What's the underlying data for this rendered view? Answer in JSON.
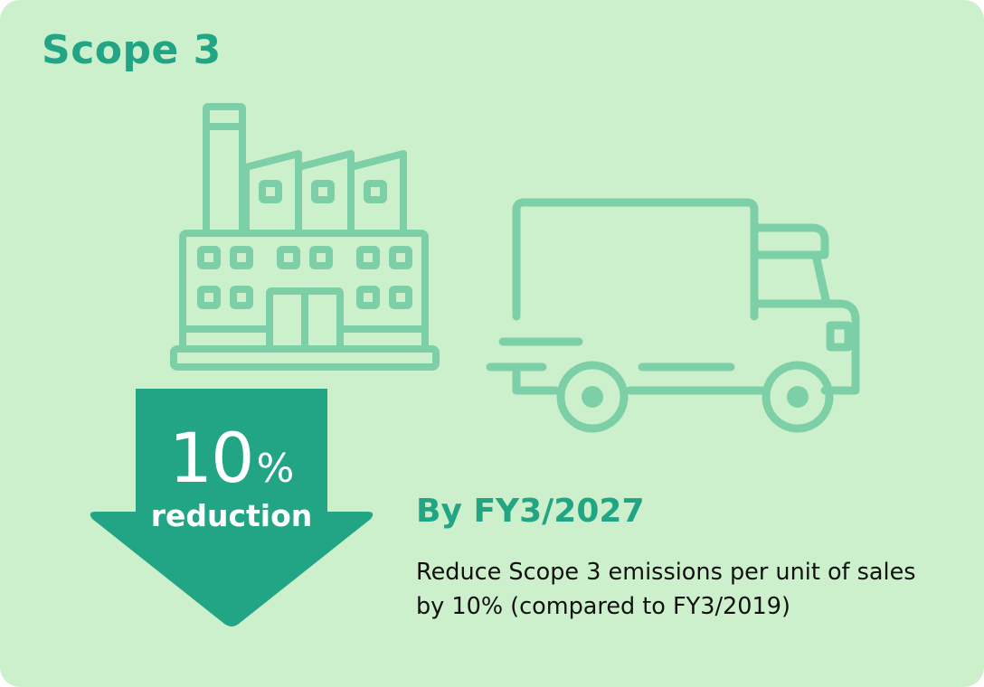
{
  "scope_title": "Scope 3",
  "target": {
    "number": "10",
    "percent_sign": "%",
    "label": "reduction",
    "reduction_percent": 10
  },
  "deadline": "By FY3/2027",
  "description": "Reduce Scope 3 emissions per unit of sales by 10% (compared to FY3/2019)",
  "icons": [
    "factory-icon",
    "delivery-truck-icon",
    "down-arrow-icon"
  ],
  "colors": {
    "background": "#cdf0cc",
    "accent": "#21a584",
    "icon_line": "#7dcfa8",
    "arrow": "#21a584",
    "text": "#111111"
  }
}
